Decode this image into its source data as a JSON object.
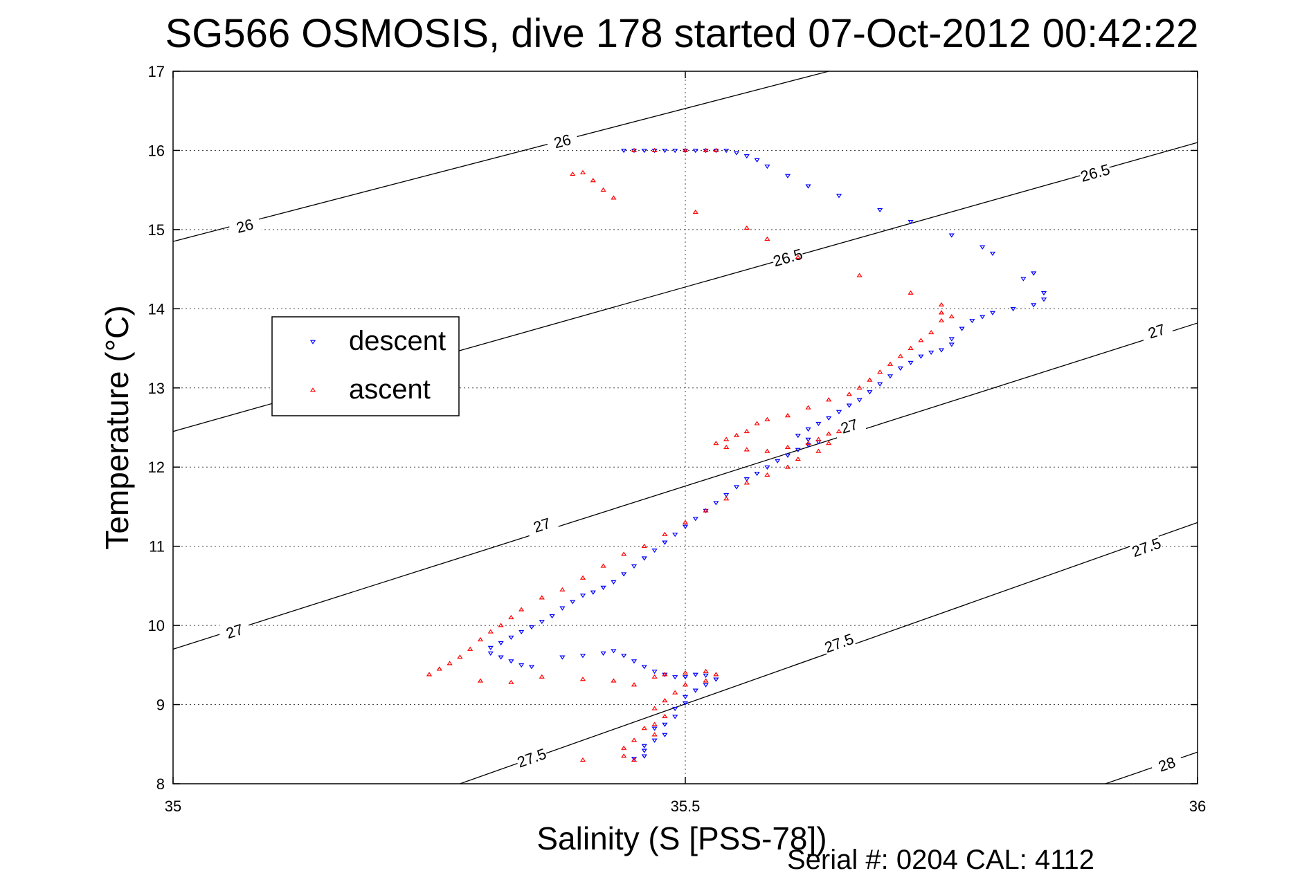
{
  "chart_data": {
    "type": "scatter",
    "title": "SG566 OSMOSIS, dive 178 started 07-Oct-2012 00:42:22",
    "xlabel": "Salinity (S [PSS-78])",
    "ylabel": "Temperature (°C)",
    "footer": "Serial #: 0204  CAL: 4112",
    "xlim": [
      35,
      36
    ],
    "ylim": [
      8,
      17
    ],
    "xticks": [
      35,
      35.5,
      36
    ],
    "xtick_labels": [
      "35",
      "35.5",
      "36"
    ],
    "yticks": [
      8,
      9,
      10,
      11,
      12,
      13,
      14,
      15,
      16,
      17
    ],
    "ytick_labels": [
      "8",
      "9",
      "10",
      "11",
      "12",
      "13",
      "14",
      "15",
      "16",
      "17"
    ],
    "grid": true,
    "legend": {
      "placement": "upper-left",
      "entries": [
        {
          "name": "descent",
          "color": "#0000ff",
          "marker": "triangle-down"
        },
        {
          "name": "ascent",
          "color": "#ff0000",
          "marker": "triangle-up"
        }
      ]
    },
    "density_contours": [
      {
        "label": "26",
        "points": [
          [
            35,
            14.85
          ],
          [
            35.64,
            17
          ]
        ],
        "label_positions": [
          [
            35.07,
            15.05
          ],
          [
            35.38,
            16.12
          ]
        ]
      },
      {
        "label": "26.5",
        "points": [
          [
            35,
            12.45
          ],
          [
            36,
            16.1
          ]
        ],
        "label_positions": [
          [
            35.6,
            14.65
          ],
          [
            35.9,
            15.72
          ]
        ]
      },
      {
        "label": "27",
        "points": [
          [
            35,
            9.7
          ],
          [
            36,
            13.82
          ]
        ],
        "label_positions": [
          [
            35.06,
            9.93
          ],
          [
            35.36,
            11.27
          ],
          [
            35.66,
            12.52
          ],
          [
            35.96,
            13.72
          ]
        ]
      },
      {
        "label": "27.5",
        "points": [
          [
            35.28,
            8
          ],
          [
            36,
            11.3
          ]
        ],
        "label_positions": [
          [
            35.35,
            8.33
          ],
          [
            35.65,
            9.78
          ],
          [
            35.95,
            10.99
          ]
        ]
      },
      {
        "label": "28",
        "points": [
          [
            35.91,
            8
          ],
          [
            36,
            8.4
          ]
        ],
        "label_positions": [
          [
            35.97,
            8.25
          ]
        ]
      }
    ],
    "series": [
      {
        "name": "descent",
        "color": "#0000ff",
        "marker": "triangle-down",
        "points": [
          [
            35.44,
            16.0
          ],
          [
            35.45,
            16.0
          ],
          [
            35.46,
            16.0
          ],
          [
            35.47,
            16.0
          ],
          [
            35.48,
            16.0
          ],
          [
            35.49,
            16.0
          ],
          [
            35.5,
            16.0
          ],
          [
            35.51,
            16.0
          ],
          [
            35.52,
            16.0
          ],
          [
            35.53,
            16.0
          ],
          [
            35.54,
            16.0
          ],
          [
            35.55,
            15.97
          ],
          [
            35.56,
            15.93
          ],
          [
            35.57,
            15.88
          ],
          [
            35.58,
            15.8
          ],
          [
            35.6,
            15.68
          ],
          [
            35.62,
            15.55
          ],
          [
            35.65,
            15.43
          ],
          [
            35.69,
            15.25
          ],
          [
            35.72,
            15.1
          ],
          [
            35.76,
            14.93
          ],
          [
            35.79,
            14.78
          ],
          [
            35.8,
            14.7
          ],
          [
            35.83,
            14.38
          ],
          [
            35.84,
            14.45
          ],
          [
            35.85,
            14.2
          ],
          [
            35.85,
            14.12
          ],
          [
            35.84,
            14.05
          ],
          [
            35.82,
            14.0
          ],
          [
            35.8,
            13.95
          ],
          [
            35.79,
            13.9
          ],
          [
            35.78,
            13.85
          ],
          [
            35.77,
            13.75
          ],
          [
            35.76,
            13.62
          ],
          [
            35.76,
            13.55
          ],
          [
            35.75,
            13.48
          ],
          [
            35.74,
            13.45
          ],
          [
            35.73,
            13.4
          ],
          [
            35.72,
            13.32
          ],
          [
            35.71,
            13.25
          ],
          [
            35.7,
            13.15
          ],
          [
            35.69,
            13.05
          ],
          [
            35.68,
            12.95
          ],
          [
            35.67,
            12.85
          ],
          [
            35.66,
            12.78
          ],
          [
            35.65,
            12.7
          ],
          [
            35.64,
            12.62
          ],
          [
            35.63,
            12.55
          ],
          [
            35.62,
            12.48
          ],
          [
            35.61,
            12.4
          ],
          [
            35.62,
            12.35
          ],
          [
            35.63,
            12.32
          ],
          [
            35.62,
            12.28
          ],
          [
            35.61,
            12.22
          ],
          [
            35.6,
            12.15
          ],
          [
            35.59,
            12.08
          ],
          [
            35.58,
            12.0
          ],
          [
            35.57,
            11.92
          ],
          [
            35.56,
            11.85
          ],
          [
            35.55,
            11.75
          ],
          [
            35.54,
            11.65
          ],
          [
            35.53,
            11.55
          ],
          [
            35.52,
            11.45
          ],
          [
            35.51,
            11.35
          ],
          [
            35.5,
            11.25
          ],
          [
            35.49,
            11.15
          ],
          [
            35.48,
            11.05
          ],
          [
            35.47,
            10.95
          ],
          [
            35.46,
            10.85
          ],
          [
            35.45,
            10.75
          ],
          [
            35.44,
            10.65
          ],
          [
            35.43,
            10.55
          ],
          [
            35.42,
            10.48
          ],
          [
            35.41,
            10.42
          ],
          [
            35.4,
            10.38
          ],
          [
            35.39,
            10.3
          ],
          [
            35.38,
            10.22
          ],
          [
            35.37,
            10.12
          ],
          [
            35.36,
            10.05
          ],
          [
            35.35,
            9.98
          ],
          [
            35.34,
            9.92
          ],
          [
            35.33,
            9.85
          ],
          [
            35.32,
            9.78
          ],
          [
            35.31,
            9.72
          ],
          [
            35.31,
            9.65
          ],
          [
            35.32,
            9.6
          ],
          [
            35.33,
            9.55
          ],
          [
            35.34,
            9.5
          ],
          [
            35.35,
            9.48
          ],
          [
            35.38,
            9.6
          ],
          [
            35.4,
            9.62
          ],
          [
            35.42,
            9.65
          ],
          [
            35.43,
            9.68
          ],
          [
            35.44,
            9.62
          ],
          [
            35.45,
            9.55
          ],
          [
            35.46,
            9.48
          ],
          [
            35.47,
            9.42
          ],
          [
            35.48,
            9.38
          ],
          [
            35.49,
            9.35
          ],
          [
            35.5,
            9.35
          ],
          [
            35.51,
            9.38
          ],
          [
            35.52,
            9.37
          ],
          [
            35.53,
            9.32
          ],
          [
            35.52,
            9.25
          ],
          [
            35.51,
            9.18
          ],
          [
            35.5,
            9.1
          ],
          [
            35.5,
            9.02
          ],
          [
            35.49,
            8.95
          ],
          [
            35.49,
            8.85
          ],
          [
            35.48,
            8.75
          ],
          [
            35.47,
            8.7
          ],
          [
            35.48,
            8.62
          ],
          [
            35.47,
            8.55
          ],
          [
            35.46,
            8.48
          ],
          [
            35.46,
            8.42
          ],
          [
            35.46,
            8.35
          ],
          [
            35.45,
            8.32
          ]
        ]
      },
      {
        "name": "ascent",
        "color": "#ff0000",
        "marker": "triangle-up",
        "points": [
          [
            35.45,
            16.0
          ],
          [
            35.47,
            16.0
          ],
          [
            35.5,
            16.0
          ],
          [
            35.52,
            16.0
          ],
          [
            35.53,
            16.0
          ],
          [
            35.4,
            15.72
          ],
          [
            35.41,
            15.62
          ],
          [
            35.42,
            15.5
          ],
          [
            35.43,
            15.4
          ],
          [
            35.39,
            15.7
          ],
          [
            35.51,
            15.22
          ],
          [
            35.56,
            15.02
          ],
          [
            35.58,
            14.88
          ],
          [
            35.61,
            14.65
          ],
          [
            35.67,
            14.42
          ],
          [
            35.72,
            14.2
          ],
          [
            35.75,
            14.05
          ],
          [
            35.75,
            13.95
          ],
          [
            35.76,
            13.9
          ],
          [
            35.75,
            13.85
          ],
          [
            35.74,
            13.7
          ],
          [
            35.73,
            13.6
          ],
          [
            35.72,
            13.5
          ],
          [
            35.71,
            13.4
          ],
          [
            35.7,
            13.3
          ],
          [
            35.69,
            13.2
          ],
          [
            35.68,
            13.1
          ],
          [
            35.67,
            13.0
          ],
          [
            35.66,
            12.92
          ],
          [
            35.64,
            12.85
          ],
          [
            35.62,
            12.75
          ],
          [
            35.6,
            12.65
          ],
          [
            35.58,
            12.6
          ],
          [
            35.57,
            12.55
          ],
          [
            35.56,
            12.45
          ],
          [
            35.55,
            12.4
          ],
          [
            35.54,
            12.35
          ],
          [
            35.53,
            12.3
          ],
          [
            35.54,
            12.25
          ],
          [
            35.56,
            12.22
          ],
          [
            35.58,
            12.2
          ],
          [
            35.6,
            12.25
          ],
          [
            35.62,
            12.3
          ],
          [
            35.63,
            12.35
          ],
          [
            35.64,
            12.42
          ],
          [
            35.65,
            12.45
          ],
          [
            35.64,
            12.3
          ],
          [
            35.63,
            12.2
          ],
          [
            35.61,
            12.1
          ],
          [
            35.6,
            12.0
          ],
          [
            35.58,
            11.9
          ],
          [
            35.56,
            11.8
          ],
          [
            35.54,
            11.6
          ],
          [
            35.52,
            11.45
          ],
          [
            35.5,
            11.3
          ],
          [
            35.48,
            11.15
          ],
          [
            35.46,
            11.0
          ],
          [
            35.44,
            10.9
          ],
          [
            35.42,
            10.75
          ],
          [
            35.4,
            10.6
          ],
          [
            35.38,
            10.45
          ],
          [
            35.36,
            10.35
          ],
          [
            35.34,
            10.2
          ],
          [
            35.33,
            10.1
          ],
          [
            35.32,
            10.0
          ],
          [
            35.31,
            9.92
          ],
          [
            35.3,
            9.82
          ],
          [
            35.29,
            9.7
          ],
          [
            35.28,
            9.6
          ],
          [
            35.27,
            9.52
          ],
          [
            35.26,
            9.45
          ],
          [
            35.25,
            9.38
          ],
          [
            35.3,
            9.3
          ],
          [
            35.33,
            9.28
          ],
          [
            35.36,
            9.35
          ],
          [
            35.4,
            9.32
          ],
          [
            35.43,
            9.3
          ],
          [
            35.45,
            9.25
          ],
          [
            35.47,
            9.35
          ],
          [
            35.48,
            9.38
          ],
          [
            35.5,
            9.4
          ],
          [
            35.52,
            9.42
          ],
          [
            35.53,
            9.38
          ],
          [
            35.52,
            9.3
          ],
          [
            35.5,
            9.25
          ],
          [
            35.49,
            9.15
          ],
          [
            35.48,
            9.05
          ],
          [
            35.47,
            8.95
          ],
          [
            35.48,
            8.85
          ],
          [
            35.47,
            8.75
          ],
          [
            35.46,
            8.7
          ],
          [
            35.47,
            8.62
          ],
          [
            35.45,
            8.55
          ],
          [
            35.44,
            8.45
          ],
          [
            35.44,
            8.35
          ],
          [
            35.45,
            8.3
          ],
          [
            35.4,
            8.3
          ]
        ]
      }
    ]
  }
}
